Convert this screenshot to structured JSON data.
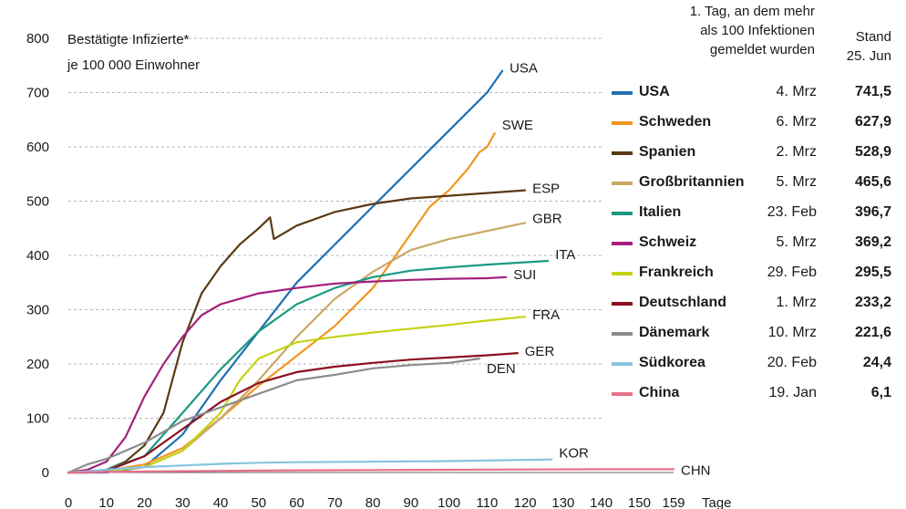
{
  "chart_data": {
    "type": "line",
    "ylabel": "Bestätigte Infizierte* je 100 000 Einwohner",
    "ylabel_lines": [
      "Bestätigte Infizierte*",
      "je 100 000 Einwohner"
    ],
    "xlabel": "Tage",
    "xlim": [
      0,
      159
    ],
    "ylim": [
      0,
      800
    ],
    "xticks": [
      0,
      10,
      20,
      30,
      40,
      50,
      60,
      70,
      80,
      90,
      100,
      110,
      120,
      130,
      140,
      150,
      159
    ],
    "yticks": [
      0,
      100,
      200,
      300,
      400,
      500,
      600,
      700,
      800
    ],
    "grid": "horizontal-dashed",
    "legend_placement": "right",
    "series": [
      {
        "name": "USA",
        "tag": "USA",
        "color": "#1f6fb2",
        "x": [
          0,
          10,
          20,
          30,
          40,
          50,
          60,
          70,
          80,
          90,
          100,
          110,
          114
        ],
        "y": [
          0,
          0,
          10,
          70,
          170,
          260,
          350,
          420,
          490,
          560,
          630,
          700,
          740
        ]
      },
      {
        "name": "Schweden",
        "tag": "SWE",
        "color": "#f0961e",
        "x": [
          0,
          10,
          20,
          30,
          40,
          50,
          60,
          70,
          80,
          88,
          95,
          100,
          105,
          108,
          110,
          112
        ],
        "y": [
          0,
          3,
          15,
          45,
          100,
          160,
          215,
          270,
          340,
          420,
          490,
          520,
          560,
          590,
          600,
          625
        ]
      },
      {
        "name": "Spanien",
        "tag": "ESP",
        "color": "#5a3a12",
        "x": [
          0,
          5,
          10,
          15,
          20,
          25,
          30,
          35,
          40,
          45,
          50,
          53,
          54,
          60,
          70,
          80,
          90,
          100,
          110,
          120
        ],
        "y": [
          0,
          0,
          5,
          20,
          50,
          110,
          240,
          330,
          380,
          420,
          450,
          470,
          430,
          455,
          480,
          495,
          505,
          510,
          515,
          520
        ]
      },
      {
        "name": "Großbritannien",
        "tag": "GBR",
        "color": "#c9a866",
        "x": [
          0,
          10,
          20,
          30,
          40,
          50,
          60,
          70,
          80,
          90,
          100,
          110,
          120
        ],
        "y": [
          0,
          3,
          10,
          40,
          100,
          170,
          250,
          320,
          370,
          410,
          430,
          445,
          460
        ]
      },
      {
        "name": "Italien",
        "tag": "ITA",
        "color": "#1a9a82",
        "x": [
          0,
          10,
          20,
          30,
          40,
          50,
          60,
          70,
          80,
          90,
          100,
          110,
          126
        ],
        "y": [
          0,
          5,
          30,
          110,
          190,
          260,
          310,
          340,
          360,
          372,
          378,
          383,
          390
        ]
      },
      {
        "name": "Schweiz",
        "tag": "SUI",
        "color": "#a3207e",
        "x": [
          0,
          5,
          10,
          15,
          20,
          25,
          30,
          35,
          40,
          45,
          50,
          60,
          70,
          80,
          90,
          100,
          110,
          115
        ],
        "y": [
          0,
          5,
          20,
          65,
          140,
          200,
          250,
          290,
          310,
          320,
          330,
          340,
          348,
          352,
          355,
          357,
          358,
          360
        ]
      },
      {
        "name": "Frankreich",
        "tag": "FRA",
        "color": "#c4d412",
        "x": [
          0,
          10,
          20,
          30,
          40,
          45,
          50,
          55,
          60,
          70,
          80,
          90,
          100,
          110,
          120
        ],
        "y": [
          0,
          2,
          10,
          40,
          110,
          170,
          210,
          225,
          240,
          250,
          258,
          265,
          272,
          280,
          287
        ]
      },
      {
        "name": "Deutschland",
        "tag": "GER",
        "color": "#8b0f1e",
        "x": [
          0,
          10,
          20,
          30,
          40,
          50,
          60,
          70,
          80,
          90,
          100,
          110,
          118
        ],
        "y": [
          0,
          3,
          30,
          80,
          130,
          165,
          185,
          195,
          202,
          208,
          212,
          216,
          220
        ]
      },
      {
        "name": "Dänemark",
        "tag": "DEN",
        "color": "#8c8c8c",
        "x": [
          0,
          5,
          10,
          20,
          30,
          40,
          50,
          60,
          70,
          80,
          90,
          100,
          108
        ],
        "y": [
          0,
          15,
          25,
          55,
          95,
          120,
          145,
          170,
          180,
          192,
          198,
          202,
          210
        ]
      },
      {
        "name": "Südkorea",
        "tag": "KOR",
        "color": "#86c4e0",
        "x": [
          0,
          10,
          20,
          30,
          40,
          50,
          60,
          80,
          100,
          127
        ],
        "y": [
          0,
          5,
          10,
          13,
          16,
          18,
          19,
          20,
          21,
          24
        ]
      },
      {
        "name": "China",
        "tag": "CHN",
        "color": "#e8708a",
        "x": [
          0,
          20,
          40,
          60,
          80,
          100,
          120,
          140,
          159
        ],
        "y": [
          0,
          2,
          3,
          4,
          4.5,
          5,
          5.5,
          6,
          6.1
        ]
      }
    ]
  },
  "legend": {
    "header_first_day": [
      "1. Tag, an dem mehr",
      "als 100 Infektionen",
      "gemeldet wurden"
    ],
    "header_stand": [
      "Stand",
      "25. Jun"
    ],
    "rows": [
      {
        "name": "USA",
        "date": "4. Mrz",
        "value": "741,5",
        "color": "#1f6fb2"
      },
      {
        "name": "Schweden",
        "date": "6. Mrz",
        "value": "627,9",
        "color": "#f0961e"
      },
      {
        "name": "Spanien",
        "date": "2. Mrz",
        "value": "528,9",
        "color": "#5a3a12"
      },
      {
        "name": "Großbritannien",
        "date": "5. Mrz",
        "value": "465,6",
        "color": "#c9a866"
      },
      {
        "name": "Italien",
        "date": "23. Feb",
        "value": "396,7",
        "color": "#1a9a82"
      },
      {
        "name": "Schweiz",
        "date": "5. Mrz",
        "value": "369,2",
        "color": "#a3207e"
      },
      {
        "name": "Frankreich",
        "date": "29. Feb",
        "value": "295,5",
        "color": "#c4d412"
      },
      {
        "name": "Deutschland",
        "date": "1. Mrz",
        "value": "233,2",
        "color": "#8b0f1e"
      },
      {
        "name": "Dänemark",
        "date": "10. Mrz",
        "value": "221,6",
        "color": "#8c8c8c"
      },
      {
        "name": "Südkorea",
        "date": "20. Feb",
        "value": "24,4",
        "color": "#86c4e0"
      },
      {
        "name": "China",
        "date": "19. Jan",
        "value": "6,1",
        "color": "#e8708a"
      }
    ]
  }
}
